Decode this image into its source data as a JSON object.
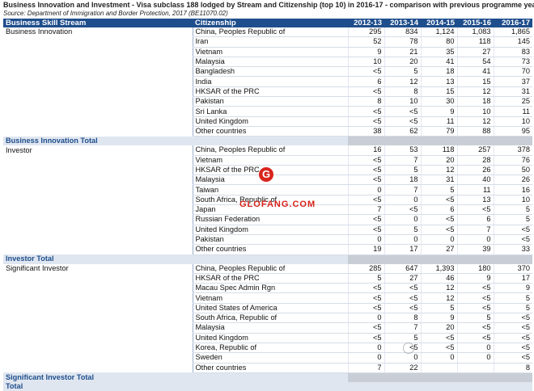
{
  "title": "Business Innovation and Investment - Visa subclass 188 lodged by Stream and Citizenship (top 10) in 2016-17 - comparison with previous programme year",
  "source": "Source: Department of Immigration and Border Protection, 2017 (BE11070.02)",
  "headers": {
    "stream": "Business Skill Stream",
    "citizenship": "Citizenship",
    "years": [
      "2012-13",
      "2013-14",
      "2014-15",
      "2015-16",
      "2016-17"
    ]
  },
  "groups": [
    {
      "stream": "Business Innovation",
      "total_label": "Business Innovation Total",
      "rows": [
        {
          "c": "China, Peoples Republic of",
          "v": [
            "295",
            "834",
            "1,124",
            "1,083",
            "1,865"
          ]
        },
        {
          "c": "Iran",
          "v": [
            "52",
            "78",
            "80",
            "118",
            "145"
          ]
        },
        {
          "c": "Vietnam",
          "v": [
            "9",
            "21",
            "35",
            "27",
            "83"
          ]
        },
        {
          "c": "Malaysia",
          "v": [
            "10",
            "20",
            "41",
            "54",
            "73"
          ]
        },
        {
          "c": "Bangladesh",
          "v": [
            "<5",
            "5",
            "18",
            "41",
            "70"
          ]
        },
        {
          "c": "India",
          "v": [
            "6",
            "12",
            "13",
            "15",
            "37"
          ]
        },
        {
          "c": "HKSAR of the PRC",
          "v": [
            "<5",
            "8",
            "15",
            "12",
            "31"
          ]
        },
        {
          "c": "Pakistan",
          "v": [
            "8",
            "10",
            "30",
            "18",
            "25"
          ]
        },
        {
          "c": "Sri Lanka",
          "v": [
            "<5",
            "<5",
            "9",
            "10",
            "11"
          ]
        },
        {
          "c": "United Kingdom",
          "v": [
            "<5",
            "<5",
            "11",
            "12",
            "10"
          ]
        },
        {
          "c": "Other countries",
          "v": [
            "38",
            "62",
            "79",
            "88",
            "95"
          ]
        }
      ]
    },
    {
      "stream": "Investor",
      "total_label": "Investor Total",
      "rows": [
        {
          "c": "China, Peoples Republic of",
          "v": [
            "16",
            "53",
            "118",
            "257",
            "378"
          ]
        },
        {
          "c": "Vietnam",
          "v": [
            "<5",
            "7",
            "20",
            "28",
            "76"
          ]
        },
        {
          "c": "HKSAR of the PRC",
          "v": [
            "<5",
            "5",
            "12",
            "26",
            "50"
          ]
        },
        {
          "c": "Malaysia",
          "v": [
            "<5",
            "18",
            "31",
            "40",
            "26"
          ]
        },
        {
          "c": "Taiwan",
          "v": [
            "0",
            "7",
            "5",
            "11",
            "16"
          ]
        },
        {
          "c": "South Africa, Republic of",
          "v": [
            "<5",
            "0",
            "<5",
            "13",
            "10"
          ]
        },
        {
          "c": "Japan",
          "v": [
            "7",
            "<5",
            "6",
            "<5",
            "5"
          ]
        },
        {
          "c": "Russian Federation",
          "v": [
            "<5",
            "0",
            "<5",
            "6",
            "5"
          ]
        },
        {
          "c": "United Kingdom",
          "v": [
            "<5",
            "5",
            "<5",
            "7",
            "<5"
          ]
        },
        {
          "c": "Pakistan",
          "v": [
            "0",
            "0",
            "0",
            "0",
            "<5"
          ]
        },
        {
          "c": "Other countries",
          "v": [
            "19",
            "17",
            "27",
            "39",
            "33"
          ]
        }
      ]
    },
    {
      "stream": "Significant Investor",
      "total_label": "Significant Investor Total",
      "rows": [
        {
          "c": "China, Peoples Republic of",
          "v": [
            "285",
            "647",
            "1,393",
            "180",
            "370"
          ]
        },
        {
          "c": "HKSAR of the PRC",
          "v": [
            "5",
            "27",
            "46",
            "9",
            "17"
          ]
        },
        {
          "c": "Macau Spec Admin Rgn",
          "v": [
            "<5",
            "<5",
            "12",
            "<5",
            "9"
          ]
        },
        {
          "c": "Vietnam",
          "v": [
            "<5",
            "<5",
            "12",
            "<5",
            "5"
          ]
        },
        {
          "c": "United States of America",
          "v": [
            "<5",
            "<5",
            "5",
            "<5",
            "5"
          ]
        },
        {
          "c": "South Africa, Republic of",
          "v": [
            "0",
            "8",
            "9",
            "5",
            "<5"
          ]
        },
        {
          "c": "Malaysia",
          "v": [
            "<5",
            "7",
            "20",
            "<5",
            "<5"
          ]
        },
        {
          "c": "United Kingdom",
          "v": [
            "<5",
            "5",
            "<5",
            "<5",
            "<5"
          ]
        },
        {
          "c": "Korea, Republic of",
          "v": [
            "0",
            "<5",
            "<5",
            "0",
            "<5"
          ]
        },
        {
          "c": "Sweden",
          "v": [
            "0",
            "0",
            "0",
            "0",
            "<5"
          ]
        },
        {
          "c": "Other countries",
          "v": [
            "7",
            "22",
            "",
            "",
            "8"
          ]
        }
      ]
    }
  ],
  "grand_total_label": "Total",
  "watermark": {
    "logo_letter": "G",
    "text": "GLOFANG.COM",
    "color": "#d9241c"
  },
  "corner_watermark": {
    "icon": "wechat-icon",
    "text": ""
  }
}
